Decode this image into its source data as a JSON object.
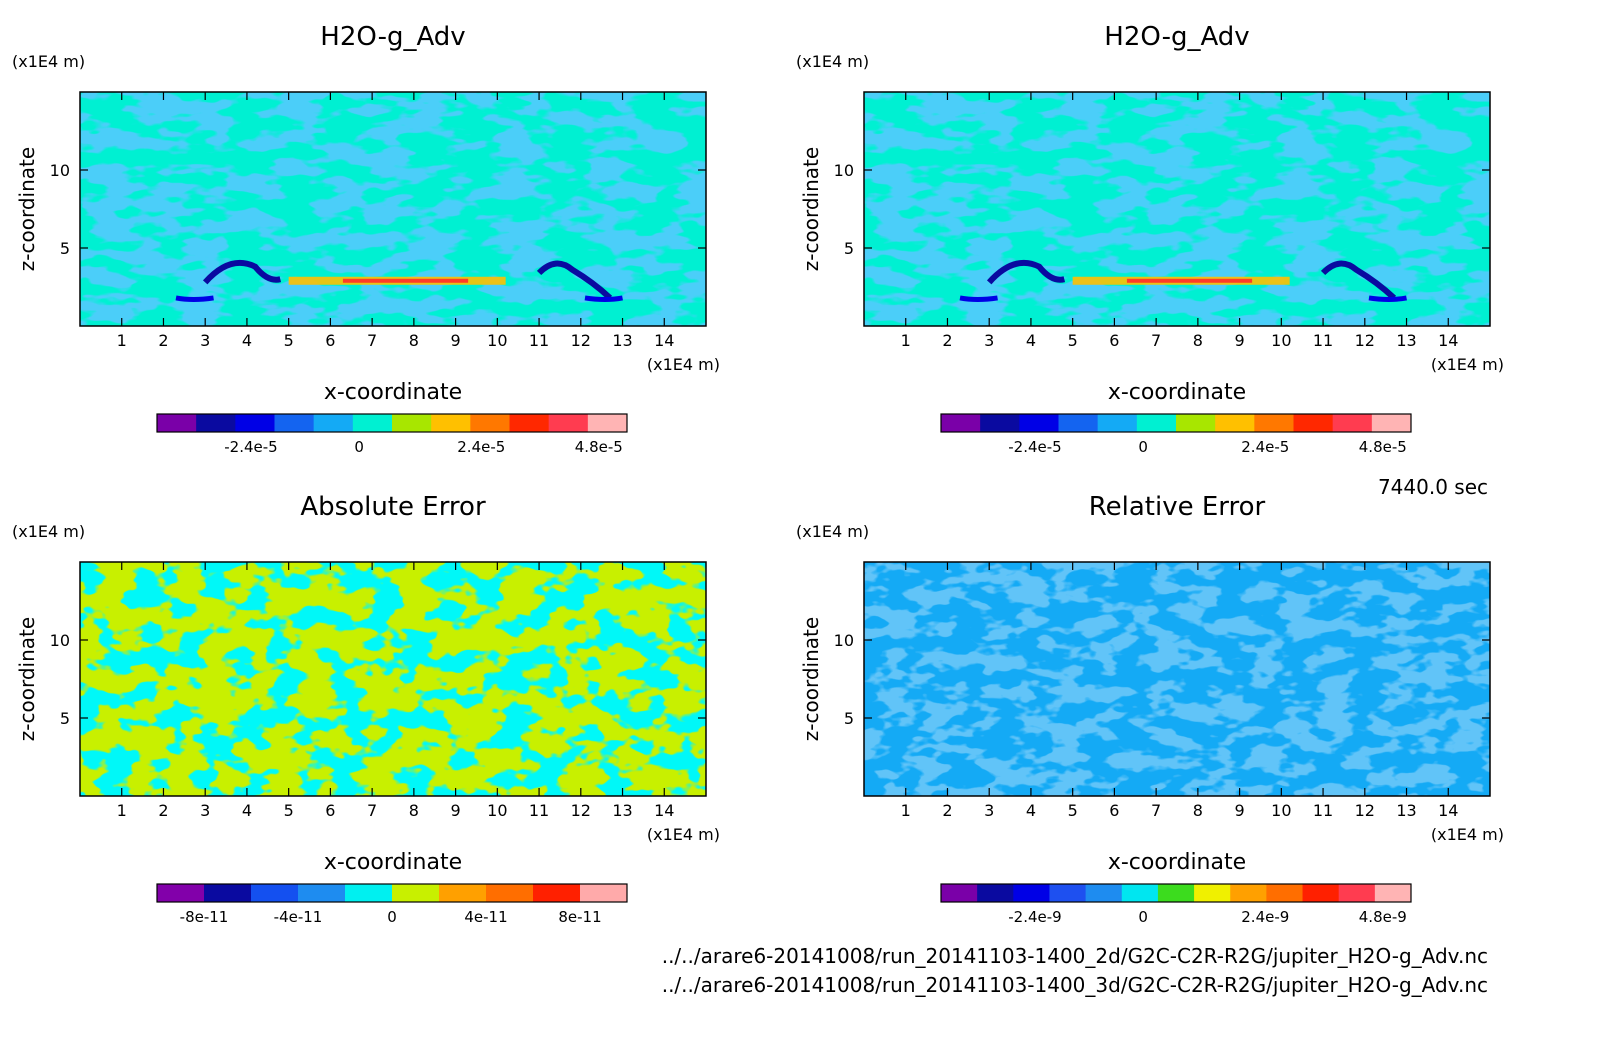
{
  "chart_data": [
    {
      "type": "heatmap",
      "title": "H2O-g_Adv",
      "xlabel": "x-coordinate",
      "ylabel": "z-coordinate",
      "x_unit": "(x1E4 m)",
      "y_unit": "(x1E4 m)",
      "xlim": [
        0,
        15
      ],
      "ylim": [
        0,
        15
      ],
      "xticks": [
        "1",
        "2",
        "3",
        "4",
        "5",
        "6",
        "7",
        "8",
        "9",
        "10",
        "11",
        "12",
        "13",
        "14"
      ],
      "yticks": [
        "5",
        "10"
      ],
      "colorbar": {
        "colors": [
          "#7a00a8",
          "#0a0aa0",
          "#0000e6",
          "#1464f0",
          "#14aaf5",
          "#00f0d2",
          "#a8e600",
          "#ffc000",
          "#ff7800",
          "#ff2800",
          "#ff3c50",
          "#ffb4b4"
        ],
        "tick_labels": [
          "-2.4e-5",
          "0",
          "2.4e-5",
          "4.8e-5"
        ]
      }
    },
    {
      "type": "heatmap",
      "title": "H2O-g_Adv",
      "xlabel": "x-coordinate",
      "ylabel": "z-coordinate",
      "x_unit": "(x1E4 m)",
      "y_unit": "(x1E4 m)",
      "xlim": [
        0,
        15
      ],
      "ylim": [
        0,
        15
      ],
      "xticks": [
        "1",
        "2",
        "3",
        "4",
        "5",
        "6",
        "7",
        "8",
        "9",
        "10",
        "11",
        "12",
        "13",
        "14"
      ],
      "yticks": [
        "5",
        "10"
      ],
      "colorbar": {
        "colors": [
          "#7a00a8",
          "#0a0aa0",
          "#0000e6",
          "#1464f0",
          "#14aaf5",
          "#00f0d2",
          "#a8e600",
          "#ffc000",
          "#ff7800",
          "#ff2800",
          "#ff3c50",
          "#ffb4b4"
        ],
        "tick_labels": [
          "-2.4e-5",
          "0",
          "2.4e-5",
          "4.8e-5"
        ]
      }
    },
    {
      "type": "heatmap",
      "title": "Absolute Error",
      "xlabel": "x-coordinate",
      "ylabel": "z-coordinate",
      "x_unit": "(x1E4 m)",
      "y_unit": "(x1E4 m)",
      "xlim": [
        0,
        15
      ],
      "ylim": [
        0,
        15
      ],
      "xticks": [
        "1",
        "2",
        "3",
        "4",
        "5",
        "6",
        "7",
        "8",
        "9",
        "10",
        "11",
        "12",
        "13",
        "14"
      ],
      "yticks": [
        "5",
        "10"
      ],
      "colorbar": {
        "colors": [
          "#8200aa",
          "#0a0aa0",
          "#1450f0",
          "#1e8cf0",
          "#00f0f0",
          "#c8f000",
          "#ffa000",
          "#ff6e00",
          "#ff2000",
          "#ffaaaa"
        ],
        "tick_labels": [
          "-8e-11",
          "-4e-11",
          "0",
          "4e-11",
          "8e-11"
        ]
      }
    },
    {
      "type": "heatmap",
      "title": "Relative Error",
      "xlabel": "x-coordinate",
      "ylabel": "z-coordinate",
      "x_unit": "(x1E4 m)",
      "y_unit": "(x1E4 m)",
      "xlim": [
        0,
        15
      ],
      "ylim": [
        0,
        15
      ],
      "xticks": [
        "1",
        "2",
        "3",
        "4",
        "5",
        "6",
        "7",
        "8",
        "9",
        "10",
        "11",
        "12",
        "13",
        "14"
      ],
      "yticks": [
        "5",
        "10"
      ],
      "colorbar": {
        "colors": [
          "#7a00a8",
          "#0a0aa0",
          "#0000e6",
          "#1e50f0",
          "#1e8cf0",
          "#00e6f0",
          "#3cdc1e",
          "#f0f000",
          "#ffa000",
          "#ff6e00",
          "#ff2000",
          "#ff3c50",
          "#ffb4b4"
        ],
        "tick_labels": [
          "-2.4e-9",
          "0",
          "2.4e-9",
          "4.8e-9"
        ]
      }
    }
  ],
  "timestamp": "7440.0 sec",
  "files": [
    "../../arare6-20141008/run_20141103-1400_2d/G2C-C2R-R2G/jupiter_H2O-g_Adv.nc",
    "../../arare6-20141008/run_20141103-1400_3d/G2C-C2R-R2G/jupiter_H2O-g_Adv.nc"
  ]
}
